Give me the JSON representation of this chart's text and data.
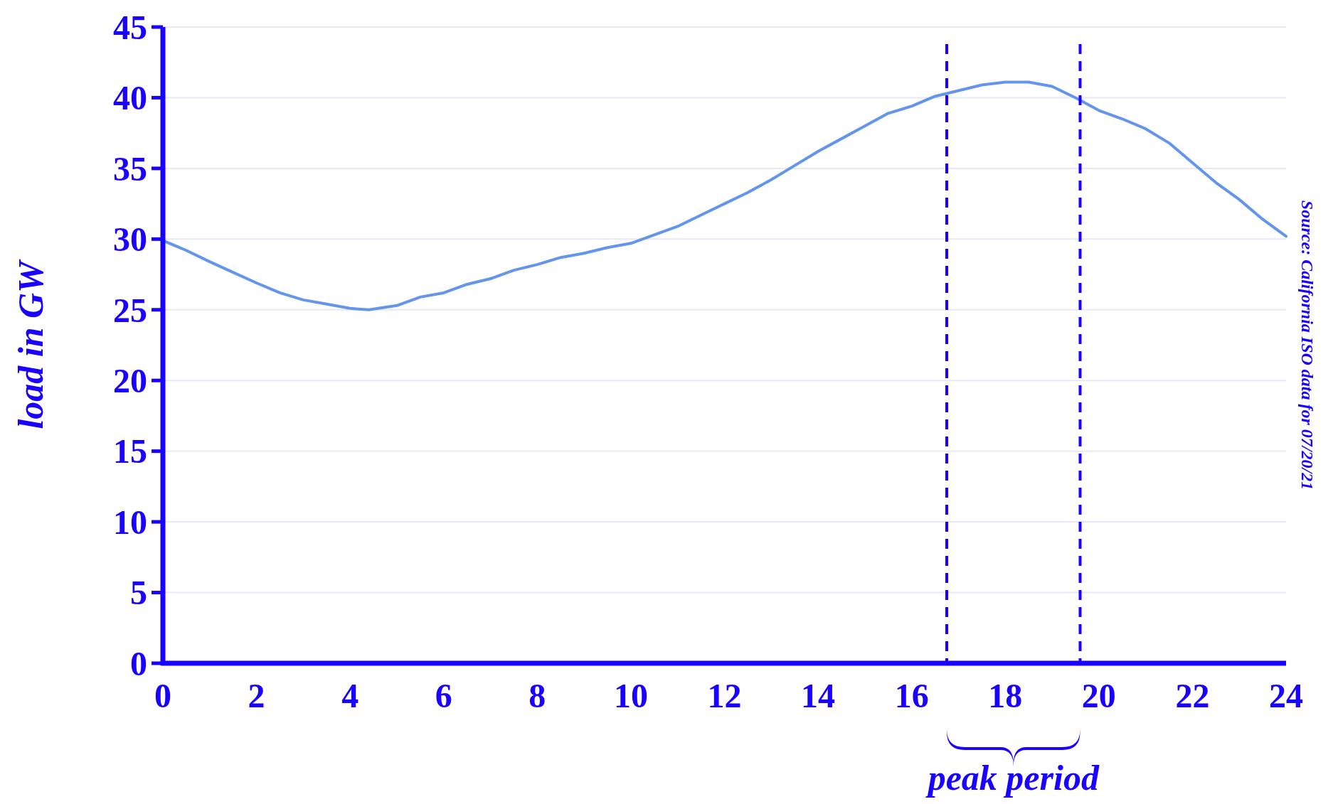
{
  "chart_data": {
    "type": "line",
    "ylabel": "load in GW",
    "x": [
      0,
      0.5,
      1,
      1.5,
      2,
      2.5,
      3,
      3.5,
      4,
      4.4,
      5,
      5.5,
      6,
      6.5,
      7,
      7.5,
      8,
      8.5,
      9,
      9.5,
      10,
      10.5,
      11,
      11.5,
      12,
      12.5,
      13,
      13.5,
      14,
      14.5,
      15,
      15.5,
      16,
      16.5,
      17,
      17.5,
      18,
      18.5,
      19,
      19.5,
      20,
      20.5,
      21,
      21.5,
      22,
      22.5,
      23,
      23.5,
      24
    ],
    "series": [
      {
        "color": "#6495ed",
        "values": [
          29.9,
          29.2,
          28.4,
          27.65,
          26.9,
          26.2,
          25.7,
          25.4,
          25.1,
          25.0,
          25.3,
          25.9,
          26.2,
          26.8,
          27.2,
          27.8,
          28.2,
          28.7,
          29.0,
          29.4,
          29.7,
          30.3,
          30.9,
          31.7,
          32.5,
          33.3,
          34.2,
          35.2,
          36.2,
          37.1,
          38.0,
          38.9,
          39.4,
          40.1,
          40.5,
          40.9,
          41.1,
          41.1,
          40.8,
          40.0,
          39.1,
          38.5,
          37.8,
          36.8,
          35.4,
          34.0,
          32.8,
          31.4,
          30.2
        ]
      }
    ],
    "xlim": [
      0,
      24
    ],
    "xticks": [
      0,
      2,
      4,
      6,
      8,
      10,
      12,
      14,
      16,
      18,
      20,
      22,
      24
    ],
    "ylim": [
      0,
      45
    ],
    "yticks": [
      0,
      5,
      10,
      15,
      20,
      25,
      30,
      35,
      40,
      45
    ],
    "grid": "y",
    "marker": "none",
    "line_style": "solid",
    "ref_lines": [
      {
        "axis": "x",
        "value": 16.75,
        "color": "#1a00ff",
        "line_style": "dashed"
      },
      {
        "axis": "x",
        "value": 19.6,
        "color": "#1a00ff",
        "line_style": "dashed"
      }
    ],
    "annotations": [
      "peak period",
      "Source: California ISO data for 07/20/21"
    ]
  }
}
